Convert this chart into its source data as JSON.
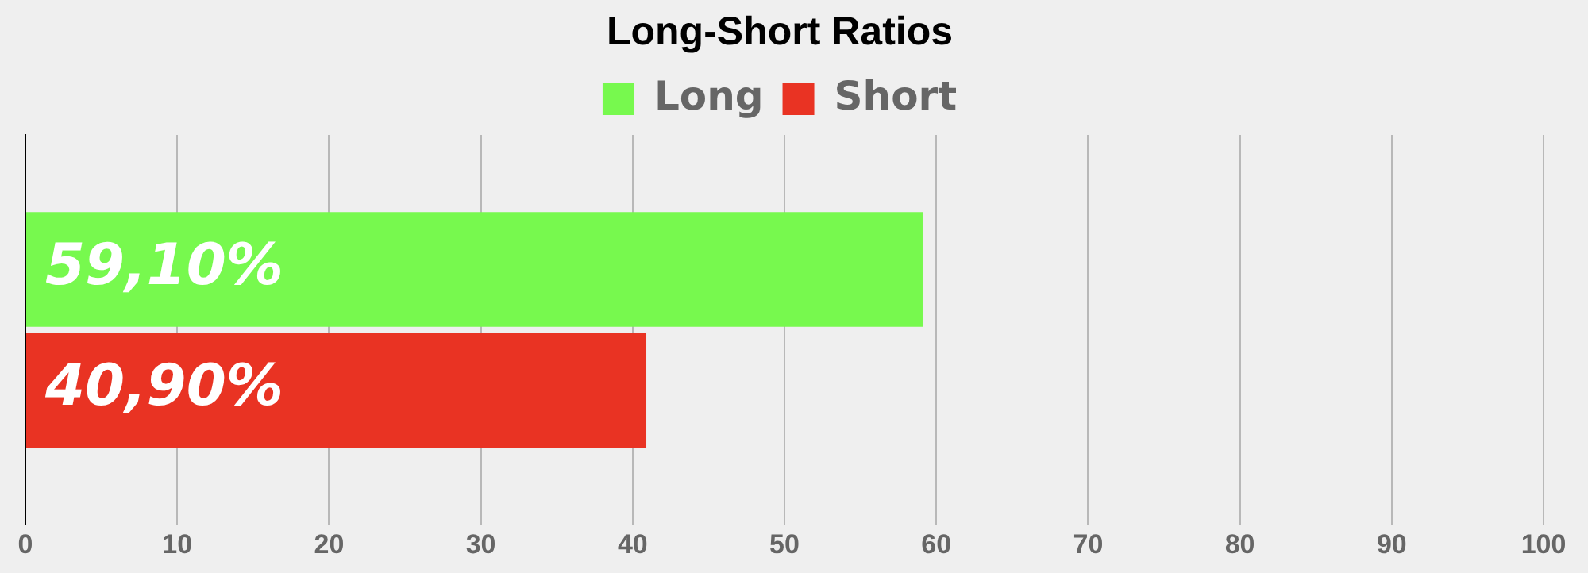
{
  "chart_data": {
    "type": "bar",
    "orientation": "horizontal",
    "title": "Long-Short Ratios",
    "categories": [
      null
    ],
    "series": [
      {
        "name": "Long",
        "color": "#77f94e",
        "values": [
          59.1
        ],
        "value_labels": [
          "59,10%"
        ]
      },
      {
        "name": "Short",
        "color": "#e93323",
        "values": [
          40.9
        ],
        "value_labels": [
          "40,90%"
        ]
      }
    ],
    "xlim": [
      0,
      100
    ],
    "xticks": [
      0,
      10,
      20,
      30,
      40,
      50,
      60,
      70,
      80,
      90,
      100
    ],
    "grid": "x",
    "legend": "top"
  }
}
